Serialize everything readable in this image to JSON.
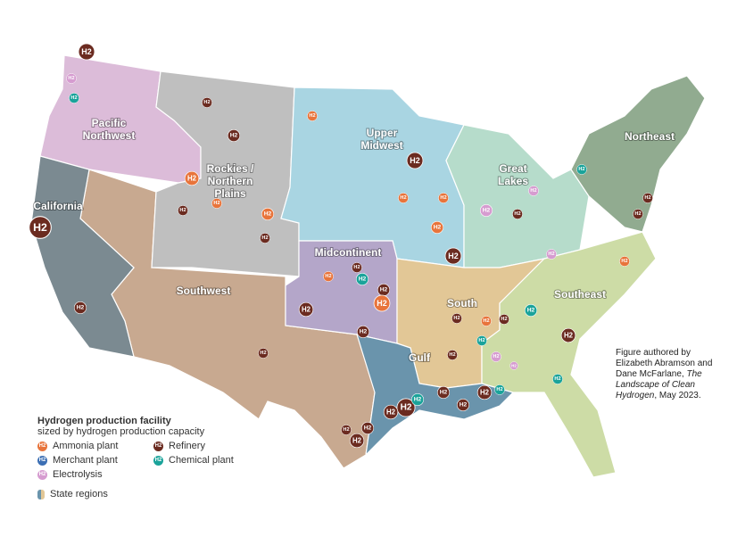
{
  "regions": [
    {
      "lines": [
        "Pacific",
        "Northwest"
      ],
      "color": "#dcbcd9"
    },
    {
      "lines": [
        "Southwest"
      ],
      "color": "#c8a990"
    },
    {
      "lines": [
        "Rockies /",
        "Northern",
        "Plains"
      ],
      "color": "#bfbfbf"
    },
    {
      "lines": [
        "California"
      ],
      "color": "#7b8a91"
    },
    {
      "lines": [
        "Upper",
        "Midwest"
      ],
      "color": "#a9d5e2"
    },
    {
      "lines": [
        "Great",
        "Lakes"
      ],
      "color": "#b6dccb"
    },
    {
      "lines": [
        "Northeast"
      ],
      "color": "#91ab90"
    },
    {
      "lines": [
        "Midcontinent"
      ],
      "color": "#b4a6c9"
    },
    {
      "lines": [
        "South"
      ],
      "color": "#e2c796"
    },
    {
      "lines": [
        "Southeast"
      ],
      "color": "#cddca6"
    },
    {
      "lines": [
        "Gulf"
      ],
      "color": "#6a94ac"
    }
  ],
  "marker_label": "H2",
  "legend": {
    "title": "Hydrogen production facility",
    "subtitle": "sized by hydrogen production capacity",
    "items": [
      {
        "label": "Ammonia plant",
        "color": "#e8743b"
      },
      {
        "label": "Merchant plant",
        "color": "#3c6fb4"
      },
      {
        "label": "Electrolysis",
        "color": "#d69cd0"
      },
      {
        "label": "Refinery",
        "color": "#6b2b20"
      },
      {
        "label": "Chemical plant",
        "color": "#1aa39a"
      }
    ],
    "regions_label": "State regions"
  },
  "credit": {
    "authors": "Figure authored by Elizabeth Abramson and Dane McFarlane,",
    "work": "The Landscape of Clean Hydrogen",
    "date": ", May 2023."
  }
}
